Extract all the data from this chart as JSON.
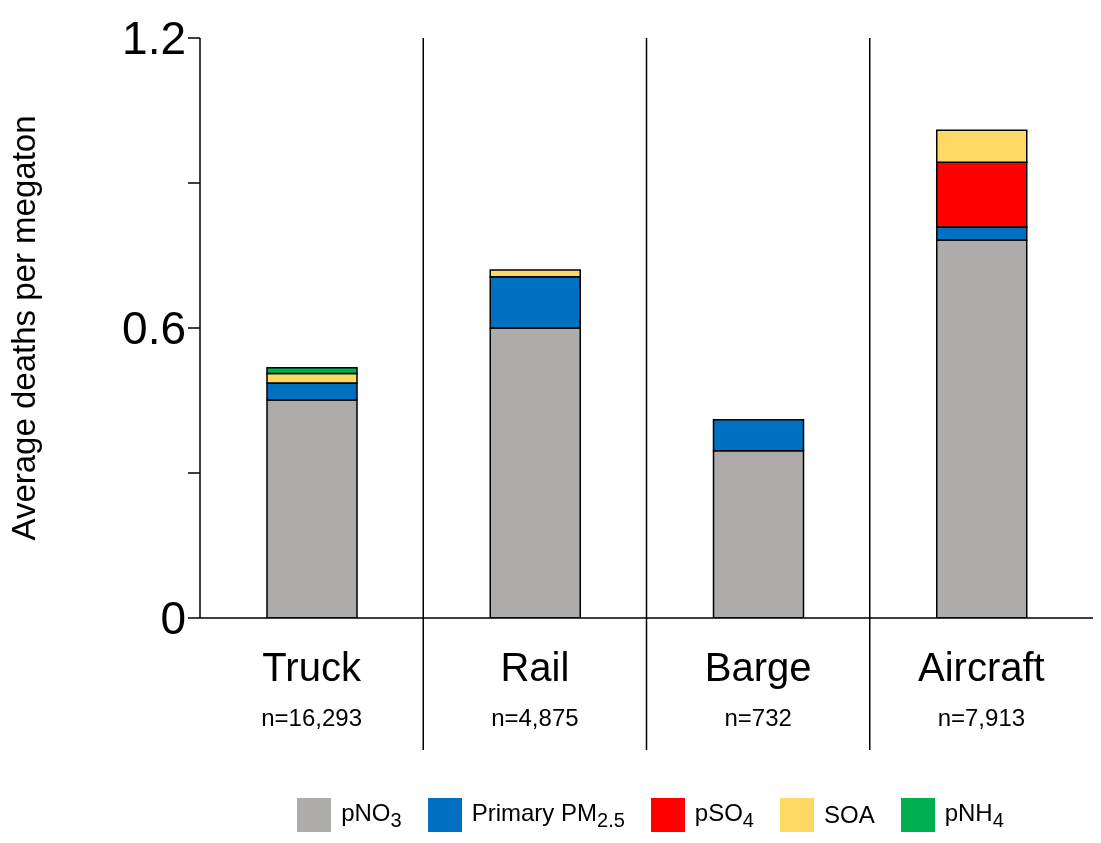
{
  "chart_data": {
    "type": "bar",
    "stacked": true,
    "ylabel": "Average deaths per megaton",
    "categories": [
      "Truck",
      "Rail",
      "Barge",
      "Aircraft"
    ],
    "series": [
      {
        "name": "pNO$_{3}$",
        "color": "#aeabab",
        "values": [
          0.451,
          0.6,
          0.346,
          0.782
        ]
      },
      {
        "name": "Primary PM$_{2.5}$",
        "color": "#0070c0",
        "values": [
          0.035,
          0.106,
          0.064,
          0.027
        ]
      },
      {
        "name": "pSO$_{4}$",
        "color": "#ff0000",
        "values": [
          0,
          0,
          0,
          0.134
        ]
      },
      {
        "name": "SOA",
        "color": "#ffd966",
        "values": [
          0.02,
          0.014,
          0,
          0.066
        ]
      },
      {
        "name": "pNH$_{4}$",
        "color": "#00b050",
        "values": [
          0.012,
          0,
          0,
          0
        ]
      }
    ],
    "ylim": [
      0,
      1.2
    ],
    "yticks": [
      0,
      {
        "value": 0.3,
        "label": null
      },
      0.6,
      {
        "value": 0.9,
        "label": null
      },
      1.2
    ],
    "annotations": [
      "n=16,293",
      "n=4,875",
      "n=732",
      "n=7,913"
    ],
    "legend": "bottom"
  }
}
